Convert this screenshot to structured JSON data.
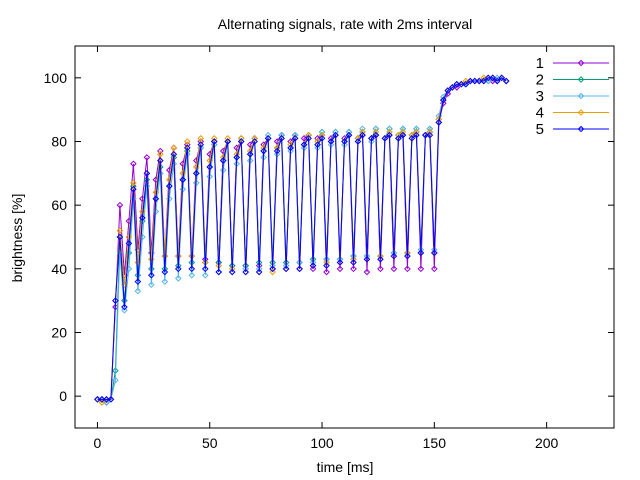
{
  "chart_data": {
    "type": "line",
    "title": "Alternating signals, rate with 2ms interval",
    "xlabel": "time [ms]",
    "ylabel": "brightness [%]",
    "xlim": [
      -10,
      230
    ],
    "ylim": [
      -10,
      110
    ],
    "xticks": [
      0,
      50,
      100,
      150,
      200
    ],
    "yticks": [
      0,
      20,
      40,
      60,
      80,
      100
    ],
    "legend_position": "top-right",
    "grid": false,
    "marker": "diamond",
    "sample_interval_ms": 2,
    "series": [
      {
        "name": "1",
        "color": "#9400d3",
        "x": [
          0,
          2,
          4,
          6,
          8,
          10,
          12,
          14,
          16,
          18,
          20,
          22,
          24,
          26,
          28,
          30,
          32,
          34,
          36,
          38,
          40,
          42,
          44,
          46,
          48,
          50,
          52,
          54,
          56,
          58,
          60,
          62,
          64,
          66,
          68,
          70,
          72,
          74,
          76,
          78,
          80,
          82,
          84,
          86,
          88,
          90,
          92,
          94,
          96,
          98,
          100,
          102,
          104,
          106,
          108,
          110,
          112,
          114,
          116,
          118,
          120,
          122,
          124,
          126,
          128,
          130,
          132,
          134,
          136,
          138,
          140,
          142,
          144,
          146,
          148,
          150,
          152,
          154,
          156,
          158,
          160,
          162,
          164,
          166,
          168,
          170,
          172,
          174,
          176,
          178,
          180,
          182
        ],
        "values": [
          -1,
          -1,
          -2,
          -1,
          28,
          60,
          38,
          55,
          73,
          46,
          62,
          75,
          45,
          68,
          77,
          44,
          71,
          78,
          44,
          73,
          79,
          44,
          74,
          80,
          43,
          76,
          80,
          42,
          77,
          80,
          41,
          78,
          80,
          41,
          79,
          81,
          41,
          79,
          81,
          40,
          80,
          82,
          40,
          80,
          82,
          40,
          81,
          82,
          40,
          81,
          82,
          39,
          81,
          82,
          40,
          81,
          82,
          40,
          81,
          82,
          39,
          81,
          82,
          40,
          81,
          82,
          40,
          81,
          82,
          40,
          82,
          83,
          40,
          82,
          83,
          40,
          86,
          92,
          95,
          97,
          97,
          98,
          98,
          99,
          99,
          99,
          99,
          100,
          99,
          99,
          100,
          99
        ]
      },
      {
        "name": "2",
        "color": "#009e73",
        "x": [
          0,
          2,
          4,
          6,
          8,
          10,
          12,
          14,
          16,
          18,
          20,
          22,
          24,
          26,
          28,
          30,
          32,
          34,
          36,
          38,
          40,
          42,
          44,
          46,
          48,
          50,
          52,
          54,
          56,
          58,
          60,
          62,
          64,
          66,
          68,
          70,
          72,
          74,
          76,
          78,
          80,
          82,
          84,
          86,
          88,
          90,
          92,
          94,
          96,
          98,
          100,
          102,
          104,
          106,
          108,
          110,
          112,
          114,
          116,
          118,
          120,
          122,
          124,
          126,
          128,
          130,
          132,
          134,
          136,
          138,
          140,
          142,
          144,
          146,
          148,
          150,
          152,
          154,
          156,
          158,
          160,
          162,
          164,
          166,
          168,
          170,
          172,
          174,
          176,
          178,
          180,
          182
        ],
        "values": [
          -1,
          -1,
          -1,
          -1,
          8,
          50,
          30,
          45,
          66,
          38,
          55,
          68,
          40,
          62,
          72,
          40,
          66,
          75,
          41,
          68,
          77,
          42,
          70,
          78,
          42,
          72,
          79,
          42,
          74,
          80,
          41,
          75,
          81,
          41,
          76,
          81,
          42,
          77,
          81,
          42,
          78,
          82,
          42,
          78,
          82,
          42,
          79,
          82,
          43,
          79,
          83,
          43,
          80,
          83,
          43,
          80,
          83,
          44,
          81,
          83,
          44,
          81,
          84,
          44,
          81,
          84,
          45,
          82,
          84,
          45,
          82,
          84,
          45,
          82,
          84,
          45,
          87,
          93,
          96,
          97,
          98,
          98,
          98,
          99,
          99,
          99,
          99,
          99,
          100,
          99,
          100,
          99
        ]
      },
      {
        "name": "3",
        "color": "#56b4e9",
        "x": [
          0,
          2,
          4,
          6,
          8,
          10,
          12,
          14,
          16,
          18,
          20,
          22,
          24,
          26,
          28,
          30,
          32,
          34,
          36,
          38,
          40,
          42,
          44,
          46,
          48,
          50,
          52,
          54,
          56,
          58,
          60,
          62,
          64,
          66,
          68,
          70,
          72,
          74,
          76,
          78,
          80,
          82,
          84,
          86,
          88,
          90,
          92,
          94,
          96,
          98,
          100,
          102,
          104,
          106,
          108,
          110,
          112,
          114,
          116,
          118,
          120,
          122,
          124,
          126,
          128,
          130,
          132,
          134,
          136,
          138,
          140,
          142,
          144,
          146,
          148,
          150,
          152,
          154,
          156,
          158,
          160,
          162,
          164,
          166,
          168,
          170,
          172,
          174,
          176,
          178,
          180,
          182
        ],
        "values": [
          -1,
          -1,
          -2,
          -1,
          5,
          45,
          27,
          40,
          62,
          33,
          50,
          66,
          35,
          58,
          70,
          36,
          62,
          73,
          37,
          65,
          76,
          38,
          67,
          78,
          38,
          69,
          79,
          39,
          71,
          80,
          39,
          73,
          81,
          40,
          74,
          81,
          40,
          75,
          82,
          41,
          76,
          82,
          41,
          77,
          82,
          42,
          78,
          82,
          42,
          78,
          83,
          43,
          79,
          83,
          43,
          79,
          83,
          44,
          80,
          84,
          44,
          80,
          84,
          44,
          81,
          84,
          45,
          81,
          84,
          45,
          82,
          84,
          46,
          82,
          84,
          46,
          88,
          94,
          96,
          97,
          98,
          98,
          98,
          99,
          99,
          99,
          99,
          99,
          100,
          100,
          100,
          99
        ]
      },
      {
        "name": "4",
        "color": "#e69f00",
        "x": [
          0,
          2,
          4,
          6,
          8,
          10,
          12,
          14,
          16,
          18,
          20,
          22,
          24,
          26,
          28,
          30,
          32,
          34,
          36,
          38,
          40,
          42,
          44,
          46,
          48,
          50,
          52,
          54,
          56,
          58,
          60,
          62,
          64,
          66,
          68,
          70,
          72,
          74,
          76,
          78,
          80,
          82,
          84,
          86,
          88,
          90,
          92,
          94,
          96,
          98,
          100,
          102,
          104,
          106,
          108,
          110,
          112,
          114,
          116,
          118,
          120,
          122,
          124,
          126,
          128,
          130,
          132,
          134,
          136,
          138,
          140,
          142,
          144,
          146,
          148,
          150,
          152,
          154,
          156,
          158,
          160,
          162,
          164,
          166,
          168,
          170,
          172,
          174,
          176,
          178,
          180,
          182
        ],
        "values": [
          -1,
          -2,
          -1,
          -1,
          30,
          52,
          35,
          50,
          67,
          42,
          58,
          70,
          43,
          64,
          76,
          44,
          68,
          78,
          44,
          70,
          80,
          44,
          72,
          81,
          42,
          74,
          81,
          41,
          75,
          81,
          40,
          76,
          81,
          39,
          77,
          81,
          39,
          78,
          81,
          39,
          78,
          81,
          40,
          79,
          81,
          40,
          79,
          82,
          41,
          80,
          82,
          42,
          80,
          82,
          42,
          80,
          82,
          43,
          81,
          83,
          43,
          81,
          83,
          44,
          81,
          83,
          44,
          82,
          83,
          45,
          82,
          83,
          45,
          82,
          83,
          45,
          87,
          93,
          96,
          97,
          98,
          98,
          99,
          99,
          99,
          99,
          100,
          100,
          100,
          99,
          100,
          99
        ]
      },
      {
        "name": "5",
        "color": "#0000ff",
        "x": [
          0,
          2,
          4,
          6,
          8,
          10,
          12,
          14,
          16,
          18,
          20,
          22,
          24,
          26,
          28,
          30,
          32,
          34,
          36,
          38,
          40,
          42,
          44,
          46,
          48,
          50,
          52,
          54,
          56,
          58,
          60,
          62,
          64,
          66,
          68,
          70,
          72,
          74,
          76,
          78,
          80,
          82,
          84,
          86,
          88,
          90,
          92,
          94,
          96,
          98,
          100,
          102,
          104,
          106,
          108,
          110,
          112,
          114,
          116,
          118,
          120,
          122,
          124,
          126,
          128,
          130,
          132,
          134,
          136,
          138,
          140,
          142,
          144,
          146,
          148,
          150,
          152,
          154,
          156,
          158,
          160,
          162,
          164,
          166,
          168,
          170,
          172,
          174,
          176,
          178,
          180,
          182
        ],
        "values": [
          -1,
          -1,
          -1,
          -1,
          30,
          50,
          28,
          48,
          65,
          36,
          56,
          70,
          38,
          62,
          74,
          39,
          66,
          76,
          40,
          68,
          78,
          40,
          70,
          79,
          40,
          72,
          80,
          39,
          74,
          80,
          39,
          75,
          80,
          39,
          76,
          80,
          39,
          77,
          81,
          40,
          77,
          81,
          40,
          78,
          81,
          40,
          79,
          81,
          41,
          79,
          81,
          41,
          80,
          82,
          42,
          80,
          82,
          42,
          80,
          82,
          43,
          81,
          82,
          43,
          81,
          82,
          44,
          81,
          82,
          44,
          81,
          82,
          45,
          82,
          82,
          45,
          86,
          93,
          96,
          97,
          98,
          98,
          98,
          99,
          99,
          99,
          99,
          100,
          100,
          99,
          100,
          99
        ]
      }
    ]
  }
}
